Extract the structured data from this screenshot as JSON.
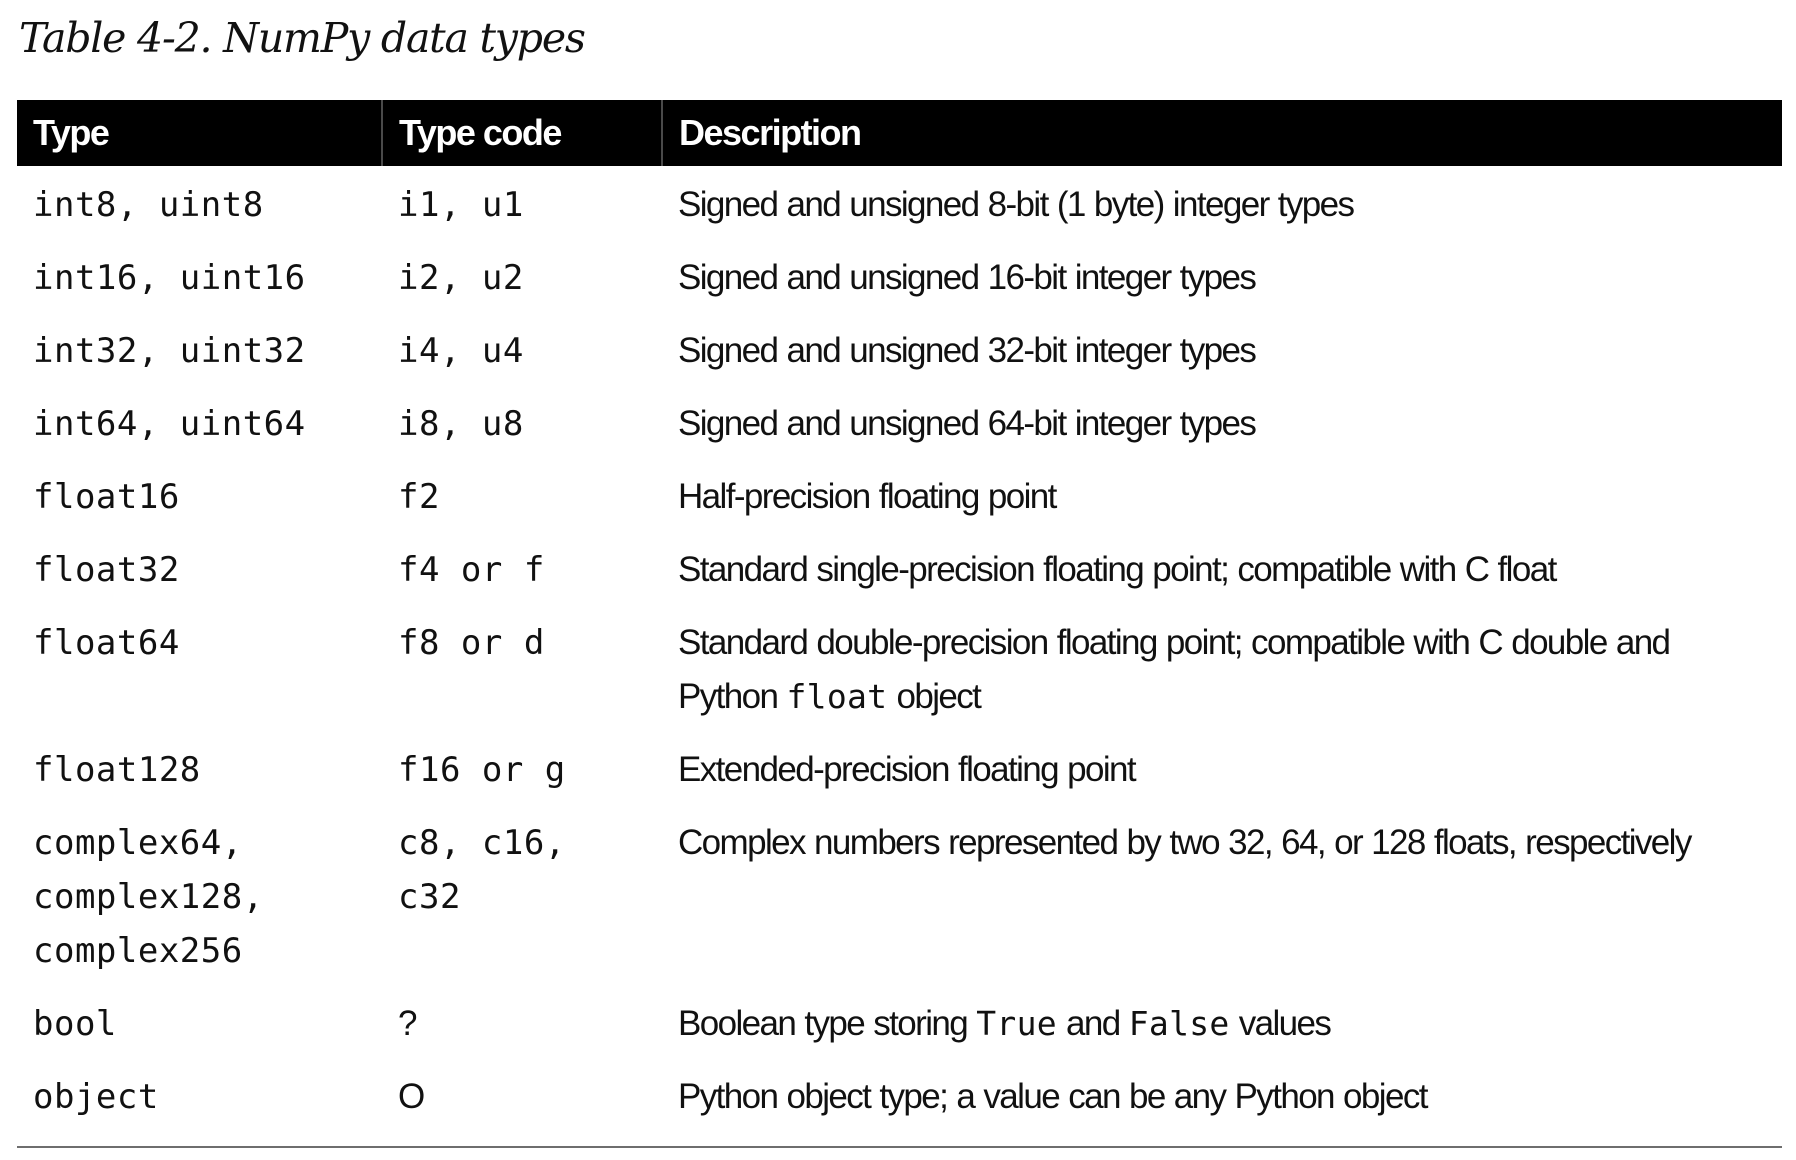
{
  "caption": "Table 4-2. NumPy data types",
  "table": {
    "headers": [
      "Type",
      "Type code",
      "Description"
    ],
    "rows": [
      {
        "type": "int8, uint8",
        "code": "i1, u1",
        "desc": "Signed and unsigned 8-bit (1 byte) integer types"
      },
      {
        "type": "int16, uint16",
        "code": "i2, u2",
        "desc": "Signed and unsigned 16-bit integer types"
      },
      {
        "type": "int32, uint32",
        "code": "i4, u4",
        "desc": "Signed and unsigned 32-bit integer types"
      },
      {
        "type": "int64, uint64",
        "code": "i8, u8",
        "desc": "Signed and unsigned 64-bit integer types"
      },
      {
        "type": "float16",
        "code": "f2",
        "desc": "Half-precision floating point"
      },
      {
        "type": "float32",
        "code": "f4 or f",
        "desc": "Standard single-precision floating point; compatible with C float"
      },
      {
        "type": "float64",
        "code": "f8 or d",
        "desc_a": "Standard double-precision floating point; compatible with C double and Python",
        "desc_code": "float",
        "desc_b": "object"
      },
      {
        "type": "float128",
        "code": "f16 or g",
        "desc": "Extended-precision floating point"
      },
      {
        "type_lines": [
          "complex64,",
          "complex128,",
          "complex256"
        ],
        "code_lines": [
          "c8, c16,",
          "c32"
        ],
        "desc": "Complex numbers represented by two 32, 64, or 128 floats, respectively"
      },
      {
        "type": "bool",
        "code": "?",
        "desc_a": "Boolean type storing",
        "desc_code1": "True",
        "desc_mid": "and",
        "desc_code2": "False",
        "desc_b": "values"
      },
      {
        "type": "object",
        "code": "O",
        "desc": "Python object type; a value can be any Python object"
      }
    ]
  }
}
